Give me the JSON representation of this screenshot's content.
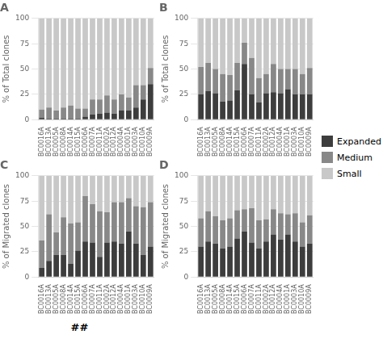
{
  "chart_data": [
    {
      "type": "bar",
      "stacked": true,
      "title": "A",
      "categories": [
        "BC0016A",
        "BC0013A",
        "BC0005A",
        "BC0008A",
        "BC0014A",
        "BC0015A",
        "BC0006A",
        "BC0007A",
        "BC0011A",
        "BC0002A",
        "BC0012A",
        "BC0004A",
        "BC0001A",
        "BC0003A",
        "BC0010A",
        "BC0009A"
      ],
      "series": [
        {
          "name": "Expanded",
          "color": "#3d3d3d",
          "values": [
            2,
            1,
            1,
            1,
            1,
            1,
            3,
            5,
            6,
            7,
            6,
            9,
            9,
            12,
            20,
            35
          ]
        },
        {
          "name": "Medium",
          "color": "#888888",
          "values": [
            8,
            11,
            8,
            11,
            13,
            10,
            8,
            15,
            14,
            17,
            14,
            16,
            13,
            22,
            14,
            16
          ]
        },
        {
          "name": "Small",
          "color": "#c8c8c8",
          "values": [
            90,
            88,
            91,
            88,
            86,
            89,
            89,
            80,
            80,
            76,
            80,
            75,
            78,
            66,
            66,
            49
          ]
        }
      ],
      "ylabel": "% of Total clones",
      "ylim": [
        0,
        100
      ],
      "yticks": [
        0,
        25,
        50,
        75,
        100
      ],
      "grid": true
    },
    {
      "type": "bar",
      "stacked": true,
      "title": "B",
      "legend": "right",
      "categories": [
        "BC0016A",
        "BC0013A",
        "BC0005A",
        "BC0008A",
        "BC0014A",
        "BC0015A",
        "BC0006A",
        "BC0007A",
        "BC0011A",
        "BC0002A",
        "BC0012A",
        "BC0004A",
        "BC0001A",
        "BC0003A",
        "BC0010A",
        "BC0009A"
      ],
      "series": [
        {
          "name": "Expanded",
          "color": "#3d3d3d",
          "values": [
            25,
            28,
            26,
            18,
            19,
            29,
            55,
            25,
            17,
            26,
            27,
            26,
            30,
            25,
            25,
            25
          ]
        },
        {
          "name": "Medium",
          "color": "#888888",
          "values": [
            27,
            28,
            24,
            27,
            25,
            27,
            21,
            36,
            24,
            19,
            28,
            24,
            20,
            25,
            20,
            26
          ]
        },
        {
          "name": "Small",
          "color": "#c8c8c8",
          "values": [
            48,
            44,
            50,
            55,
            56,
            44,
            24,
            39,
            59,
            55,
            45,
            50,
            50,
            50,
            55,
            49
          ]
        }
      ],
      "ylabel": "% of Total clones",
      "ylim": [
        0,
        100
      ],
      "yticks": [
        0,
        25,
        50,
        75,
        100
      ],
      "grid": true
    },
    {
      "type": "bar",
      "stacked": true,
      "title": "C",
      "annotations": [
        "##"
      ],
      "categories": [
        "BC0016A",
        "BC0013A",
        "BC0005A",
        "BC0008A",
        "BC0014A",
        "BC0015A",
        "BC0006A",
        "BC0007A",
        "BC0011A",
        "BC0002A",
        "BC0012A",
        "BC0004A",
        "BC0001A",
        "BC0003A",
        "BC0010A",
        "BC0009A"
      ],
      "series": [
        {
          "name": "Expanded",
          "color": "#3d3d3d",
          "values": [
            9,
            16,
            22,
            22,
            13,
            26,
            35,
            34,
            20,
            34,
            35,
            33,
            45,
            33,
            22,
            30
          ]
        },
        {
          "name": "Medium",
          "color": "#888888",
          "values": [
            27,
            46,
            22,
            37,
            40,
            28,
            45,
            38,
            45,
            30,
            39,
            41,
            33,
            37,
            47,
            44
          ]
        },
        {
          "name": "Small",
          "color": "#c8c8c8",
          "values": [
            64,
            38,
            56,
            41,
            47,
            46,
            20,
            28,
            35,
            36,
            26,
            26,
            22,
            30,
            31,
            26
          ]
        }
      ],
      "ylabel": "% of Migrated clones",
      "ylim": [
        0,
        100
      ],
      "yticks": [
        0,
        25,
        50,
        75,
        100
      ],
      "grid": true
    },
    {
      "type": "bar",
      "stacked": true,
      "title": "D",
      "categories": [
        "BC0016A",
        "BC0013A",
        "BC0005A",
        "BC0008A",
        "BC0014A",
        "BC0015A",
        "BC0006A",
        "BC0007A",
        "BC0011A",
        "BC0002A",
        "BC0012A",
        "BC0004A",
        "BC0001A",
        "BC0003A",
        "BC0010A",
        "BC0009A"
      ],
      "series": [
        {
          "name": "Expanded",
          "color": "#3d3d3d",
          "values": [
            30,
            35,
            33,
            28,
            30,
            38,
            45,
            34,
            28,
            35,
            42,
            37,
            42,
            35,
            30,
            33
          ]
        },
        {
          "name": "Medium",
          "color": "#888888",
          "values": [
            28,
            30,
            27,
            28,
            28,
            28,
            22,
            34,
            28,
            22,
            25,
            26,
            20,
            28,
            24,
            28
          ]
        },
        {
          "name": "Small",
          "color": "#c8c8c8",
          "values": [
            42,
            35,
            40,
            44,
            42,
            34,
            33,
            32,
            44,
            43,
            33,
            37,
            38,
            37,
            46,
            39
          ]
        }
      ],
      "ylabel": "% of Migrated clones",
      "ylim": [
        0,
        100
      ],
      "yticks": [
        0,
        25,
        50,
        75,
        100
      ],
      "grid": true
    }
  ]
}
